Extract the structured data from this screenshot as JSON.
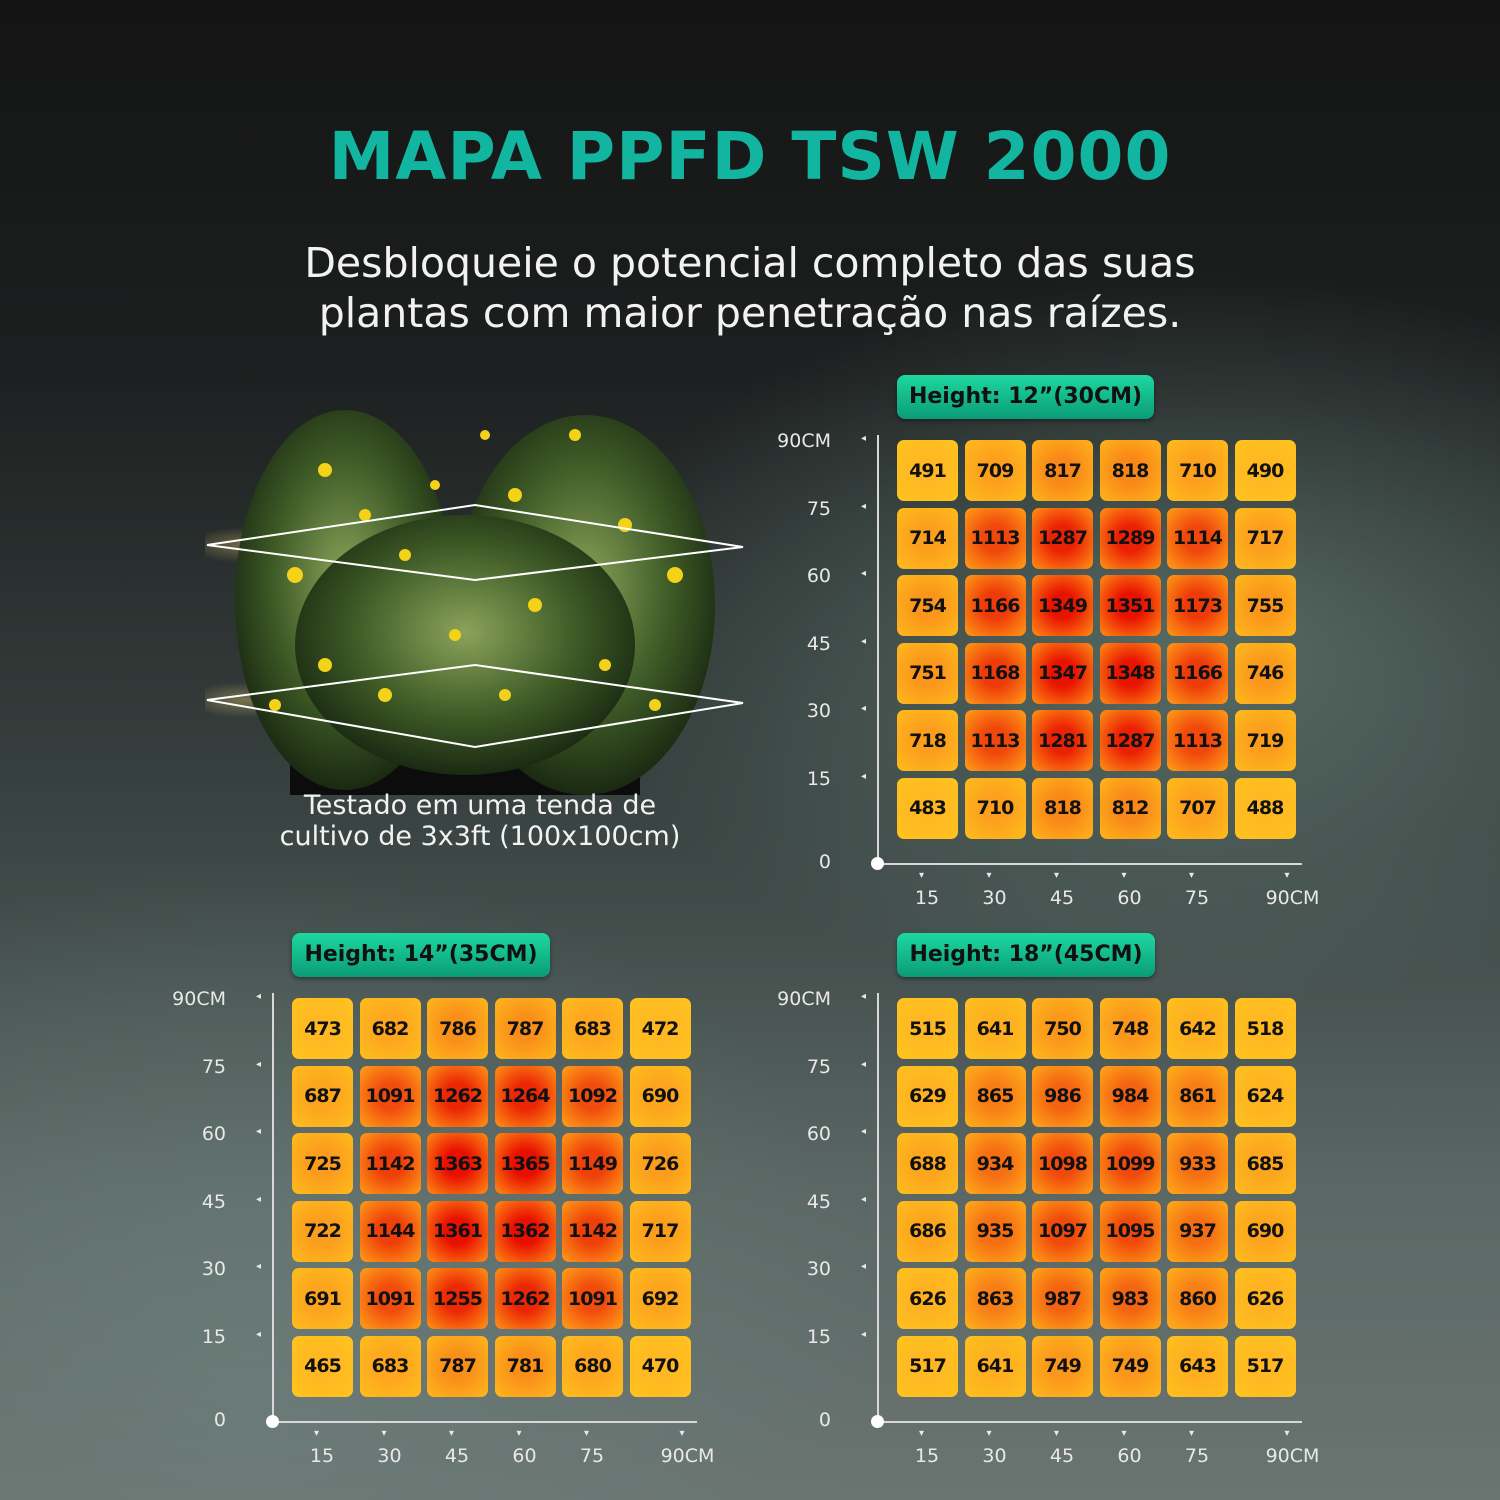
{
  "title": "MAPA PPFD TSW 2000",
  "subtitle": [
    "Desbloqueie o potencial completo das suas",
    "plantas com maior penetração nas raízes."
  ],
  "caption": [
    "Testado em uma tenda de",
    "cultivo de 3x3ft (100x100cm)"
  ],
  "colors": {
    "title": "#12b5a0",
    "badge": "#17c08f",
    "cell_low": "#ffbf1f",
    "cell_high": "#e80d00"
  },
  "chart_data": [
    {
      "type": "heatmap",
      "title": "Height: 12”(30CM)",
      "x_tick_labels": [
        "15",
        "30",
        "45",
        "60",
        "75",
        "90CM"
      ],
      "y_tick_labels": [
        "0",
        "15",
        "30",
        "45",
        "60",
        "75",
        "90CM"
      ],
      "rows": [
        [
          491,
          709,
          817,
          818,
          710,
          490
        ],
        [
          714,
          1113,
          1287,
          1289,
          1114,
          717
        ],
        [
          754,
          1166,
          1349,
          1351,
          1173,
          755
        ],
        [
          751,
          1168,
          1347,
          1348,
          1166,
          746
        ],
        [
          718,
          1113,
          1281,
          1287,
          1113,
          719
        ],
        [
          483,
          710,
          818,
          812,
          707,
          488
        ]
      ]
    },
    {
      "type": "heatmap",
      "title": "Height: 14”(35CM)",
      "x_tick_labels": [
        "15",
        "30",
        "45",
        "60",
        "75",
        "90CM"
      ],
      "y_tick_labels": [
        "0",
        "15",
        "30",
        "45",
        "60",
        "75",
        "90CM"
      ],
      "rows": [
        [
          473,
          682,
          786,
          787,
          683,
          472
        ],
        [
          687,
          1091,
          1262,
          1264,
          1092,
          690
        ],
        [
          725,
          1142,
          1363,
          1365,
          1149,
          726
        ],
        [
          722,
          1144,
          1361,
          1362,
          1142,
          717
        ],
        [
          691,
          1091,
          1255,
          1262,
          1091,
          692
        ],
        [
          465,
          683,
          787,
          781,
          680,
          470
        ]
      ]
    },
    {
      "type": "heatmap",
      "title": "Height: 18”(45CM)",
      "x_tick_labels": [
        "15",
        "30",
        "45",
        "60",
        "75",
        "90CM"
      ],
      "y_tick_labels": [
        "0",
        "15",
        "30",
        "45",
        "60",
        "75",
        "90CM"
      ],
      "rows": [
        [
          515,
          641,
          750,
          748,
          642,
          518
        ],
        [
          629,
          865,
          986,
          984,
          861,
          624
        ],
        [
          688,
          934,
          1098,
          1099,
          933,
          685
        ],
        [
          686,
          935,
          1097,
          1095,
          937,
          690
        ],
        [
          626,
          863,
          987,
          983,
          860,
          626
        ],
        [
          517,
          641,
          749,
          749,
          643,
          517
        ]
      ]
    }
  ]
}
